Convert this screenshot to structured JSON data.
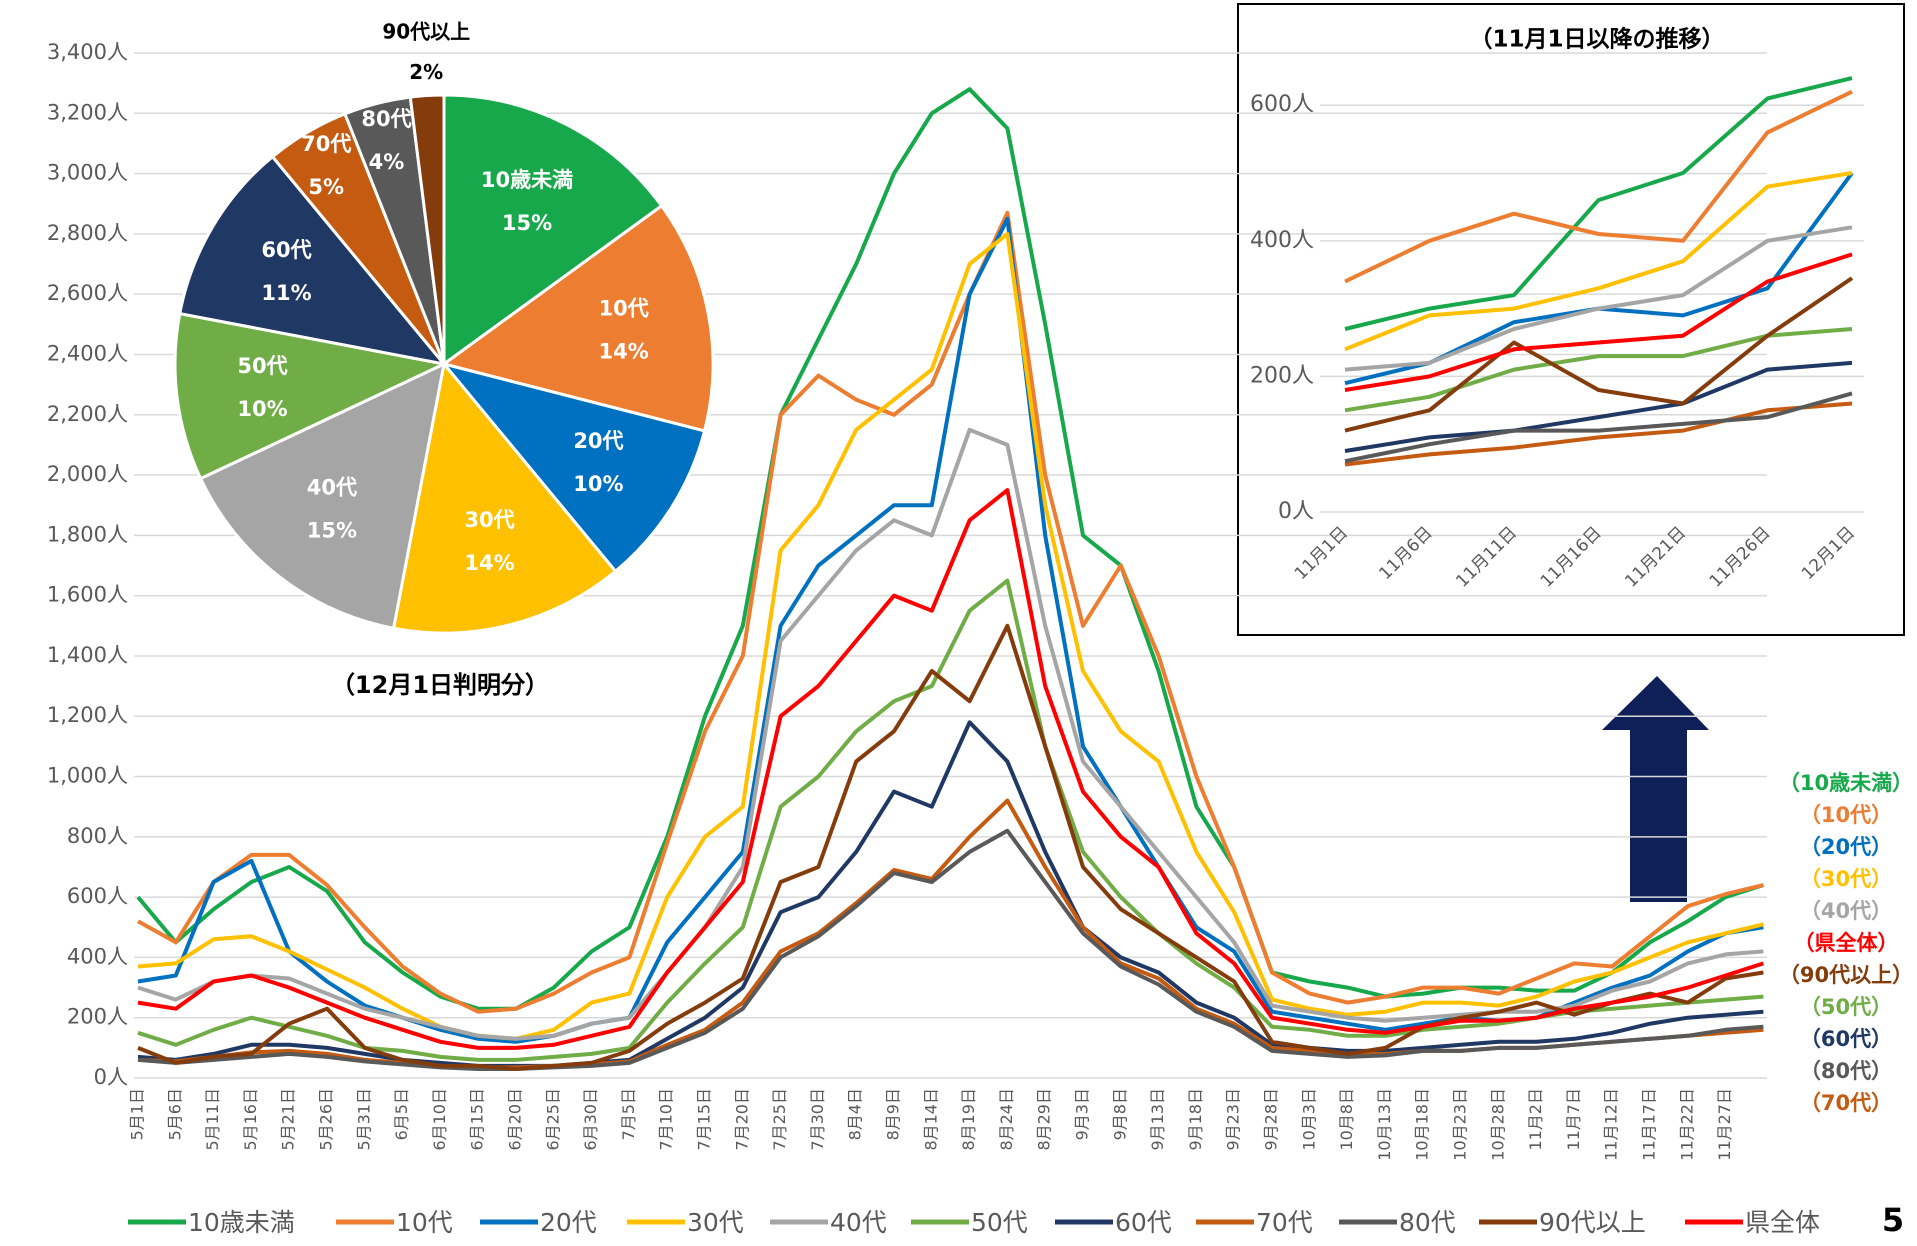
{
  "page_number": "5",
  "chart_data": [
    {
      "type": "line",
      "categories": [
        "5月1日",
        "5月6日",
        "5月11日",
        "5月16日",
        "5月21日",
        "5月26日",
        "5月31日",
        "6月5日",
        "6月10日",
        "6月15日",
        "6月20日",
        "6月25日",
        "6月30日",
        "7月5日",
        "7月10日",
        "7月15日",
        "7月20日",
        "7月25日",
        "7月30日",
        "8月4日",
        "8月9日",
        "8月14日",
        "8月19日",
        "8月24日",
        "8月29日",
        "9月3日",
        "9月8日",
        "9月13日",
        "9月18日",
        "9月23日",
        "9月28日",
        "10月3日",
        "10月8日",
        "10月13日",
        "10月18日",
        "10月23日",
        "10月28日",
        "11月2日",
        "11月7日",
        "11月12日",
        "11月17日",
        "11月22日",
        "11月27日",
        null
      ],
      "ylim": [
        0,
        3400
      ],
      "yticks": [
        {
          "value": 0,
          "label": "0人"
        },
        {
          "value": 200,
          "label": "200人"
        },
        {
          "value": 400,
          "label": "400人"
        },
        {
          "value": 600,
          "label": "600人"
        },
        {
          "value": 800,
          "label": "800人"
        },
        {
          "value": 1000,
          "label": "1,000人"
        },
        {
          "value": 1200,
          "label": "1,200人"
        },
        {
          "value": 1400,
          "label": "1,400人"
        },
        {
          "value": 1600,
          "label": "1,600人"
        },
        {
          "value": 1800,
          "label": "1,800人"
        },
        {
          "value": 2000,
          "label": "2,000人"
        },
        {
          "value": 2200,
          "label": "2,200人"
        },
        {
          "value": 2400,
          "label": "2,400人"
        },
        {
          "value": 2600,
          "label": "2,600人"
        },
        {
          "value": 2800,
          "label": "2,800人"
        },
        {
          "value": 3000,
          "label": "3,000人"
        },
        {
          "value": 3200,
          "label": "3,200人"
        },
        {
          "value": 3400,
          "label": "3,400人"
        }
      ],
      "grid": true,
      "series": [
        {
          "name": "10歳未満",
          "color": "#17a84b",
          "values": [
            600,
            450,
            560,
            650,
            700,
            620,
            450,
            350,
            270,
            230,
            230,
            300,
            420,
            500,
            800,
            1200,
            1500,
            2200,
            2450,
            2700,
            3000,
            3200,
            3280,
            3150,
            2500,
            1800,
            1700,
            1350,
            900,
            700,
            350,
            320,
            300,
            270,
            280,
            300,
            300,
            290,
            290,
            350,
            450,
            520,
            600,
            640
          ]
        },
        {
          "name": "10代",
          "color": "#ed7d31",
          "values": [
            520,
            450,
            650,
            740,
            740,
            640,
            500,
            370,
            280,
            220,
            230,
            280,
            350,
            400,
            780,
            1150,
            1400,
            2200,
            2330,
            2250,
            2200,
            2300,
            2600,
            2870,
            2000,
            1500,
            1700,
            1400,
            1000,
            700,
            350,
            280,
            250,
            270,
            300,
            300,
            280,
            330,
            380,
            370,
            470,
            570,
            610,
            640
          ]
        },
        {
          "name": "20代",
          "color": "#0070c0",
          "values": [
            320,
            340,
            650,
            720,
            420,
            320,
            240,
            200,
            160,
            130,
            120,
            140,
            180,
            200,
            450,
            600,
            750,
            1500,
            1700,
            1800,
            1900,
            1900,
            2600,
            2850,
            1800,
            1100,
            900,
            700,
            500,
            420,
            220,
            200,
            180,
            160,
            180,
            200,
            190,
            200,
            250,
            300,
            340,
            420,
            480,
            500
          ]
        },
        {
          "name": "30代",
          "color": "#ffc000",
          "values": [
            370,
            380,
            460,
            470,
            420,
            360,
            300,
            230,
            170,
            140,
            130,
            160,
            250,
            280,
            600,
            800,
            900,
            1750,
            1900,
            2150,
            2250,
            2350,
            2700,
            2800,
            1900,
            1350,
            1150,
            1050,
            750,
            550,
            260,
            230,
            210,
            220,
            250,
            250,
            240,
            270,
            320,
            350,
            400,
            450,
            480,
            510
          ]
        },
        {
          "name": "40代",
          "color": "#a5a5a5",
          "values": [
            300,
            260,
            320,
            340,
            330,
            280,
            230,
            200,
            170,
            140,
            130,
            140,
            180,
            200,
            350,
            500,
            700,
            1450,
            1600,
            1750,
            1850,
            1800,
            2150,
            2100,
            1500,
            1050,
            900,
            750,
            600,
            450,
            240,
            220,
            200,
            190,
            200,
            210,
            220,
            220,
            240,
            290,
            320,
            380,
            410,
            420
          ]
        },
        {
          "name": "50代",
          "color": "#70ad47",
          "values": [
            150,
            110,
            160,
            200,
            170,
            140,
            100,
            90,
            70,
            60,
            60,
            70,
            80,
            100,
            250,
            380,
            500,
            900,
            1000,
            1150,
            1250,
            1300,
            1550,
            1650,
            1100,
            750,
            600,
            480,
            380,
            300,
            170,
            160,
            140,
            140,
            160,
            170,
            180,
            200,
            220,
            230,
            240,
            250,
            260,
            270
          ]
        },
        {
          "name": "60代",
          "color": "#203864",
          "values": [
            70,
            60,
            80,
            110,
            110,
            100,
            80,
            60,
            50,
            40,
            40,
            40,
            50,
            60,
            130,
            200,
            300,
            550,
            600,
            750,
            950,
            900,
            1180,
            1050,
            750,
            500,
            400,
            350,
            250,
            200,
            110,
            100,
            90,
            90,
            100,
            110,
            120,
            120,
            130,
            150,
            180,
            200,
            210,
            220
          ]
        },
        {
          "name": "70代",
          "color": "#c55a11",
          "values": [
            60,
            55,
            70,
            85,
            90,
            80,
            60,
            50,
            40,
            35,
            35,
            40,
            45,
            55,
            110,
            160,
            250,
            420,
            480,
            580,
            690,
            660,
            800,
            920,
            700,
            500,
            380,
            330,
            230,
            180,
            100,
            90,
            80,
            80,
            90,
            90,
            100,
            100,
            110,
            120,
            130,
            140,
            150,
            160
          ]
        },
        {
          "name": "80代",
          "color": "#595959",
          "values": [
            60,
            50,
            60,
            70,
            80,
            70,
            55,
            45,
            35,
            30,
            30,
            35,
            40,
            50,
            100,
            150,
            230,
            400,
            470,
            570,
            680,
            650,
            750,
            820,
            650,
            480,
            370,
            310,
            220,
            170,
            90,
            80,
            70,
            75,
            90,
            90,
            100,
            100,
            110,
            120,
            130,
            140,
            160,
            170
          ]
        },
        {
          "name": "90代以上",
          "color": "#843c0c",
          "values": [
            100,
            50,
            70,
            80,
            180,
            230,
            100,
            60,
            40,
            40,
            30,
            40,
            50,
            90,
            180,
            250,
            330,
            650,
            700,
            1050,
            1150,
            1350,
            1250,
            1500,
            1100,
            700,
            560,
            480,
            400,
            320,
            120,
            100,
            80,
            100,
            170,
            200,
            220,
            250,
            210,
            250,
            280,
            250,
            330,
            350
          ]
        },
        {
          "name": "県全体",
          "color": "#ff0000",
          "values": [
            250,
            230,
            320,
            340,
            300,
            250,
            200,
            160,
            120,
            100,
            100,
            110,
            140,
            170,
            350,
            500,
            650,
            1200,
            1300,
            1450,
            1600,
            1550,
            1850,
            1950,
            1300,
            950,
            800,
            700,
            480,
            380,
            200,
            180,
            160,
            150,
            170,
            190,
            190,
            200,
            230,
            250,
            270,
            300,
            340,
            380
          ]
        }
      ],
      "annotations": [
        "（10歳未満）",
        "（10代）",
        "（20代）",
        "（30代）",
        "（40代）",
        "（県全体）",
        "（90代以上）",
        "（50代）",
        "（60代）",
        "（80代）",
        "（70代）"
      ]
    },
    {
      "type": "pie",
      "subtitle": "（12月1日判明分）",
      "categories": [
        "10歳未満",
        "10代",
        "20代",
        "30代",
        "40代",
        "50代",
        "60代",
        "70代",
        "80代",
        "90代以上"
      ],
      "values": [
        15,
        14,
        10,
        14,
        15,
        10,
        11,
        5,
        4,
        2
      ],
      "value_labels": [
        "15%",
        "14%",
        "10%",
        "14%",
        "15%",
        "10%",
        "11%",
        "5%",
        "4%",
        "2%"
      ],
      "colors": [
        "#17a84b",
        "#ed7d31",
        "#0070c0",
        "#ffc000",
        "#a5a5a5",
        "#70ad47",
        "#203864",
        "#c55a11",
        "#595959",
        "#843c0c"
      ]
    },
    {
      "type": "line",
      "title": "（11月1日以降の推移）",
      "categories": [
        "11月1日",
        "11月6日",
        "11月11日",
        "11月16日",
        "11月21日",
        "11月26日",
        "12月1日"
      ],
      "ylim": [
        0,
        680
      ],
      "yticks": [
        {
          "value": 0,
          "label": "0人"
        },
        {
          "value": 200,
          "label": "200人"
        },
        {
          "value": 400,
          "label": "400人"
        },
        {
          "value": 600,
          "label": "600人"
        }
      ],
      "grid": true,
      "series": [
        {
          "name": "10歳未満",
          "color": "#17a84b",
          "values": [
            270,
            300,
            320,
            460,
            500,
            610,
            640
          ]
        },
        {
          "name": "10代",
          "color": "#ed7d31",
          "values": [
            340,
            400,
            440,
            410,
            400,
            560,
            620
          ]
        },
        {
          "name": "20代",
          "color": "#0070c0",
          "values": [
            190,
            220,
            280,
            300,
            290,
            330,
            500
          ]
        },
        {
          "name": "30代",
          "color": "#ffc000",
          "values": [
            240,
            290,
            300,
            330,
            370,
            480,
            500
          ]
        },
        {
          "name": "40代",
          "color": "#a5a5a5",
          "values": [
            210,
            220,
            270,
            300,
            320,
            400,
            420
          ]
        },
        {
          "name": "50代",
          "color": "#70ad47",
          "values": [
            150,
            170,
            210,
            230,
            230,
            260,
            270
          ]
        },
        {
          "name": "60代",
          "color": "#203864",
          "values": [
            90,
            110,
            120,
            140,
            160,
            210,
            220
          ]
        },
        {
          "name": "70代",
          "color": "#c55a11",
          "values": [
            70,
            85,
            95,
            110,
            120,
            150,
            160
          ]
        },
        {
          "name": "80代",
          "color": "#595959",
          "values": [
            75,
            100,
            120,
            120,
            130,
            140,
            175
          ]
        },
        {
          "name": "90代以上",
          "color": "#843c0c",
          "values": [
            120,
            150,
            250,
            180,
            160,
            260,
            345
          ]
        },
        {
          "name": "県全体",
          "color": "#ff0000",
          "values": [
            180,
            200,
            240,
            250,
            260,
            340,
            380
          ]
        }
      ]
    }
  ]
}
